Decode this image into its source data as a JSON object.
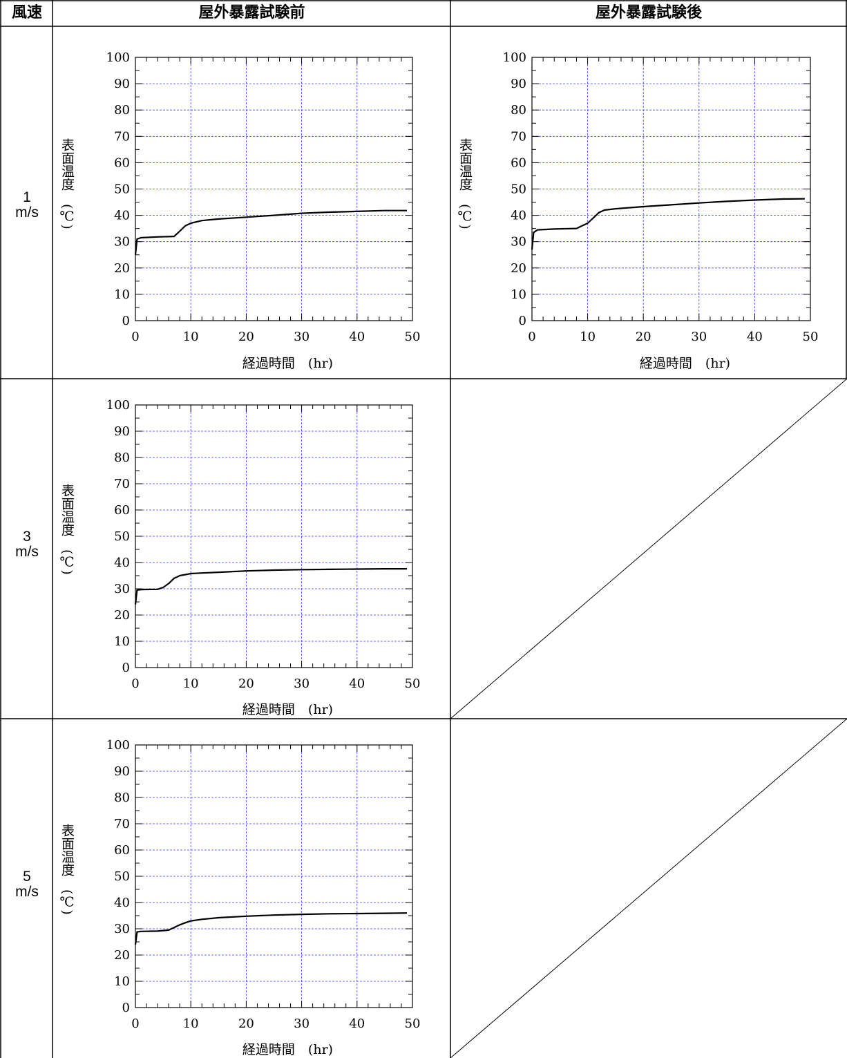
{
  "header": {
    "col_speed": "風速",
    "col_before": "屋外暴露試験前",
    "col_after": "屋外暴露試験後"
  },
  "rows": [
    {
      "speed_value": "1",
      "speed_unit": "m/s"
    },
    {
      "speed_value": "3",
      "speed_unit": "m/s"
    },
    {
      "speed_value": "5",
      "speed_unit": "m/s"
    }
  ],
  "colors": {
    "grid": "#3a3aff",
    "line": "#000000",
    "border": "#000000"
  },
  "chart_data": [
    {
      "id": "before-1ms",
      "type": "line",
      "xlabel": "経過時間　(hr)",
      "ylabel": "表面温度　(℃)",
      "xlim": [
        0,
        50
      ],
      "ylim": [
        0,
        100
      ],
      "x_ticks": [
        0,
        10,
        20,
        30,
        40,
        50
      ],
      "y_ticks": [
        0,
        10,
        20,
        30,
        40,
        50,
        60,
        70,
        80,
        90,
        100
      ],
      "grid": true,
      "series": [
        {
          "x": [
            0,
            0.3,
            1,
            4,
            7,
            8,
            9,
            10,
            12,
            15,
            20,
            25,
            30,
            35,
            40,
            45,
            49
          ],
          "y": [
            25,
            31,
            31.5,
            31.8,
            32,
            34,
            36,
            37,
            38,
            38.6,
            39.3,
            40,
            40.8,
            41.2,
            41.5,
            41.8,
            41.8
          ]
        }
      ]
    },
    {
      "id": "after-1ms",
      "type": "line",
      "xlabel": "経過時間　(hr)",
      "ylabel": "表面温度　(℃)",
      "xlim": [
        0,
        50
      ],
      "ylim": [
        0,
        100
      ],
      "x_ticks": [
        0,
        10,
        20,
        30,
        40,
        50
      ],
      "y_ticks": [
        0,
        10,
        20,
        30,
        40,
        50,
        60,
        70,
        80,
        90,
        100
      ],
      "grid": true,
      "series": [
        {
          "x": [
            0,
            0.3,
            1,
            4,
            8,
            9,
            10,
            11,
            12,
            13,
            15,
            20,
            25,
            30,
            35,
            40,
            45,
            49
          ],
          "y": [
            27,
            33.5,
            34.5,
            34.8,
            35,
            36,
            37,
            39,
            41,
            42,
            42.5,
            43.3,
            44,
            44.7,
            45.3,
            45.8,
            46.2,
            46.3
          ]
        }
      ]
    },
    {
      "id": "before-3ms",
      "type": "line",
      "xlabel": "経過時間　(hr)",
      "ylabel": "表面温度　(℃)",
      "xlim": [
        0,
        50
      ],
      "ylim": [
        0,
        100
      ],
      "x_ticks": [
        0,
        10,
        20,
        30,
        40,
        50
      ],
      "y_ticks": [
        0,
        10,
        20,
        30,
        40,
        50,
        60,
        70,
        80,
        90,
        100
      ],
      "grid": true,
      "series": [
        {
          "x": [
            0,
            0.3,
            1,
            4,
            5,
            6,
            7,
            8,
            10,
            12,
            15,
            20,
            25,
            30,
            35,
            40,
            45,
            49
          ],
          "y": [
            24,
            29.5,
            29.7,
            29.8,
            30.5,
            32,
            34,
            35,
            35.8,
            36,
            36.3,
            36.8,
            37.1,
            37.3,
            37.4,
            37.5,
            37.6,
            37.6
          ]
        }
      ]
    },
    {
      "id": "before-5ms",
      "type": "line",
      "xlabel": "経過時間　(hr)",
      "ylabel": "表面温度　(℃)",
      "xlim": [
        0,
        50
      ],
      "ylim": [
        0,
        100
      ],
      "x_ticks": [
        0,
        10,
        20,
        30,
        40,
        50
      ],
      "y_ticks": [
        0,
        10,
        20,
        30,
        40,
        50,
        60,
        70,
        80,
        90,
        100
      ],
      "grid": true,
      "series": [
        {
          "x": [
            0,
            0.3,
            1,
            4,
            6,
            7,
            8,
            9,
            10,
            12,
            15,
            20,
            25,
            30,
            35,
            40,
            45,
            49
          ],
          "y": [
            24,
            28.8,
            29,
            29.1,
            29.5,
            30.5,
            31.5,
            32.3,
            33,
            33.6,
            34.2,
            34.8,
            35.2,
            35.5,
            35.7,
            35.8,
            35.9,
            36
          ]
        }
      ]
    }
  ]
}
